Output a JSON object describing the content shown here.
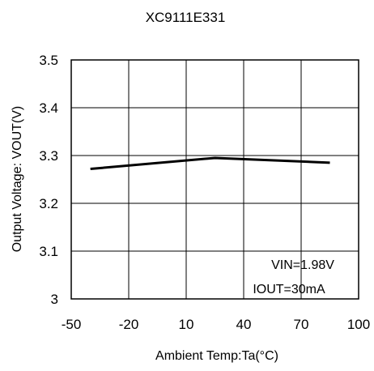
{
  "chart_data": {
    "type": "line",
    "title": "XC9111E331",
    "xlabel": "Ambient Temp:Ta(°C)",
    "ylabel": "Output Voltage: VOUT(V)",
    "xlim": [
      -50,
      100
    ],
    "ylim": [
      3.0,
      3.5
    ],
    "x_ticks": [
      -50,
      -20,
      10,
      40,
      70,
      100
    ],
    "x_tick_labels": [
      "-50",
      "-20",
      "10",
      "40",
      "70",
      "100"
    ],
    "y_ticks": [
      3.0,
      3.1,
      3.2,
      3.3,
      3.4,
      3.5
    ],
    "y_tick_labels": [
      "3",
      "3.1",
      "3.2",
      "3.3",
      "3.4",
      "3.5"
    ],
    "grid": true,
    "series": [
      {
        "x": [
          -40,
          25,
          85
        ],
        "y": [
          3.272,
          3.295,
          3.285
        ],
        "color": "#000000"
      }
    ],
    "annotations": [
      "VIN=1.98V",
      "IOUT=30mA"
    ]
  }
}
